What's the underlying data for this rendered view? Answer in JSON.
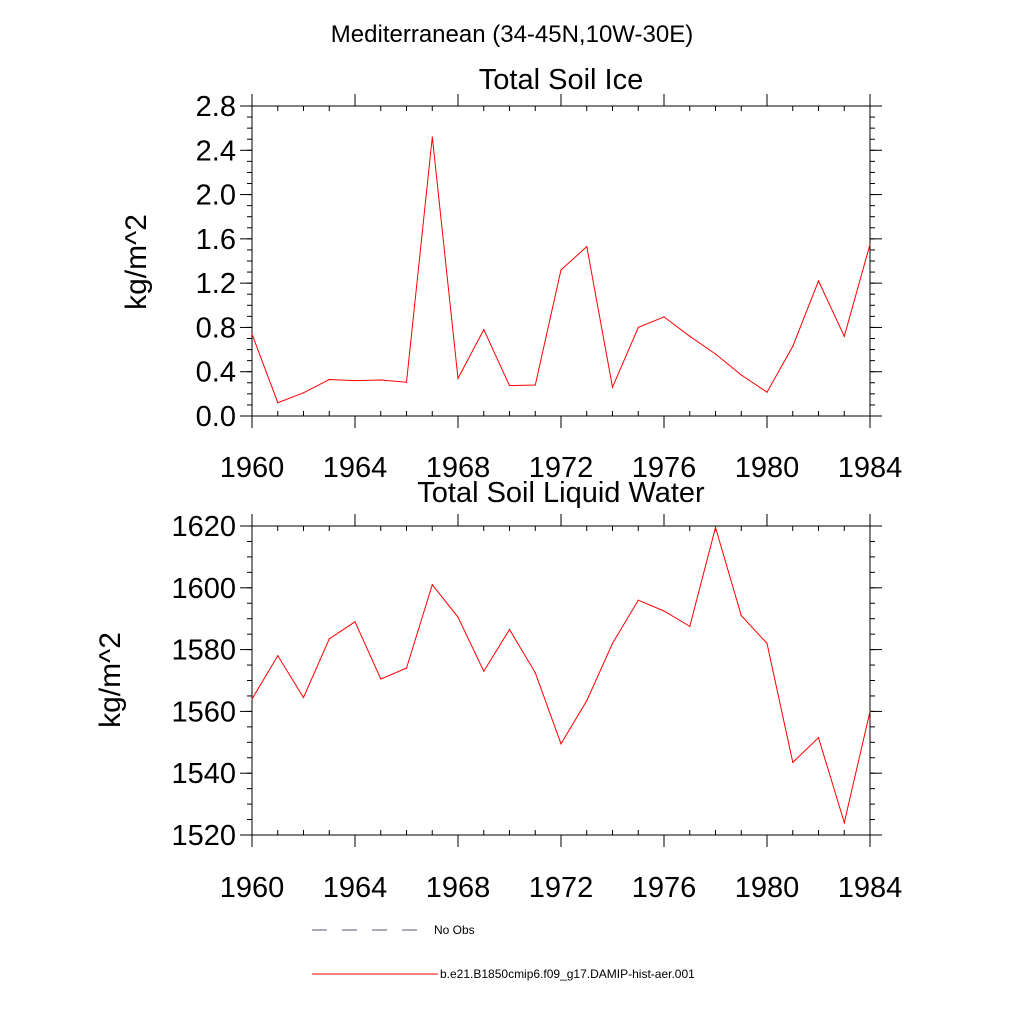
{
  "figure": {
    "suptitle": "Mediterranean (34-45N,10W-30E)"
  },
  "chart_data": [
    {
      "type": "line",
      "title": "Total Soil Ice",
      "xlabel": "",
      "ylabel": "kg/m^2",
      "xlim": [
        1960,
        1984
      ],
      "ylim": [
        0.0,
        2.8
      ],
      "xticks": [
        1960,
        1964,
        1968,
        1972,
        1976,
        1980,
        1984
      ],
      "xtick_labels": [
        "1960",
        "1964",
        "1968",
        "1972",
        "1976",
        "1980",
        "1984"
      ],
      "yticks": [
        0.0,
        0.4,
        0.8,
        1.2,
        1.6,
        2.0,
        2.4,
        2.8
      ],
      "ytick_labels": [
        "0.0",
        "0.4",
        "0.8",
        "1.2",
        "1.6",
        "2.0",
        "2.4",
        "2.8"
      ],
      "grid": false,
      "series": [
        {
          "name": "b.e21.B1850cmip6.f09_g17.DAMIP-hist-aer.001",
          "color": "#ff0000",
          "x": [
            1960,
            1961,
            1962,
            1963,
            1964,
            1965,
            1966,
            1967,
            1968,
            1969,
            1970,
            1971,
            1972,
            1973,
            1974,
            1975,
            1976,
            1977,
            1978,
            1979,
            1980,
            1981,
            1982,
            1983,
            1984
          ],
          "values": [
            0.74,
            0.12,
            0.21,
            0.33,
            0.32,
            0.325,
            0.305,
            2.52,
            0.34,
            0.78,
            0.275,
            0.28,
            1.32,
            1.53,
            0.26,
            0.8,
            0.895,
            0.72,
            0.56,
            0.37,
            0.215,
            0.63,
            1.22,
            0.72,
            1.55
          ]
        }
      ]
    },
    {
      "type": "line",
      "title": "Total Soil Liquid Water",
      "xlabel": "",
      "ylabel": "kg/m^2",
      "xlim": [
        1960,
        1984
      ],
      "ylim": [
        1520,
        1620
      ],
      "xticks": [
        1960,
        1964,
        1968,
        1972,
        1976,
        1980,
        1984
      ],
      "xtick_labels": [
        "1960",
        "1964",
        "1968",
        "1972",
        "1976",
        "1980",
        "1984"
      ],
      "yticks": [
        1520,
        1540,
        1560,
        1580,
        1600,
        1620
      ],
      "ytick_labels": [
        "1520",
        "1540",
        "1560",
        "1580",
        "1600",
        "1620"
      ],
      "grid": false,
      "series": [
        {
          "name": "b.e21.B1850cmip6.f09_g17.DAMIP-hist-aer.001",
          "color": "#ff0000",
          "x": [
            1960,
            1961,
            1962,
            1963,
            1964,
            1965,
            1966,
            1967,
            1968,
            1969,
            1970,
            1971,
            1972,
            1973,
            1974,
            1975,
            1976,
            1977,
            1978,
            1979,
            1980,
            1981,
            1982,
            1983,
            1984
          ],
          "values": [
            1564,
            1578,
            1564.5,
            1583.5,
            1589,
            1570.5,
            1574,
            1601,
            1590.5,
            1573,
            1586.5,
            1572.5,
            1549.5,
            1563.5,
            1582,
            1596,
            1592.5,
            1587.5,
            1619.5,
            1591,
            1582,
            1543.5,
            1551.5,
            1524,
            1560
          ]
        }
      ]
    }
  ],
  "legend": {
    "items": [
      {
        "label": "No Obs",
        "style": "dashed",
        "color": "#555577"
      },
      {
        "label": "b.e21.B1850cmip6.f09_g17.DAMIP-hist-aer.001",
        "style": "solid",
        "color": "#ff0000"
      }
    ]
  }
}
